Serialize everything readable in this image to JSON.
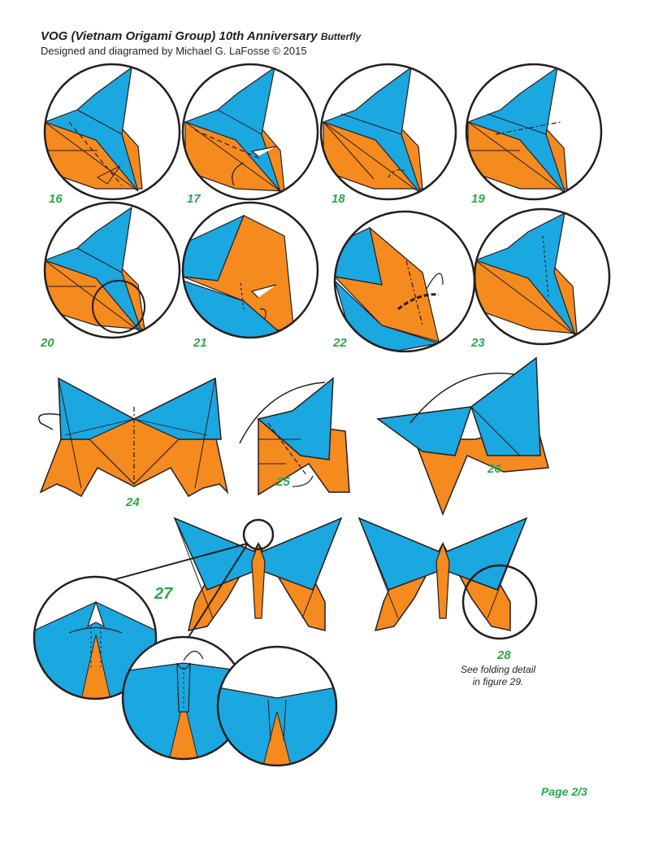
{
  "header": {
    "title_main": "VOG (Vietnam Origami Group) 10th Anniversary",
    "title_small": "Butterfly",
    "subtitle": "Designed and diagramed by Michael G. LaFosse © 2015"
  },
  "steps": [
    "16",
    "17",
    "18",
    "19",
    "20",
    "21",
    "22",
    "23",
    "24",
    "25",
    "26",
    "27",
    "28"
  ],
  "caption_line1": "See folding detail",
  "caption_line2": "in figure 29.",
  "page_label": "Page 2/3",
  "colors": {
    "paper_blue": "#1ba7e0",
    "paper_orange": "#f58a1f",
    "outline": "#231f20",
    "step_green": "#2aa84a"
  }
}
